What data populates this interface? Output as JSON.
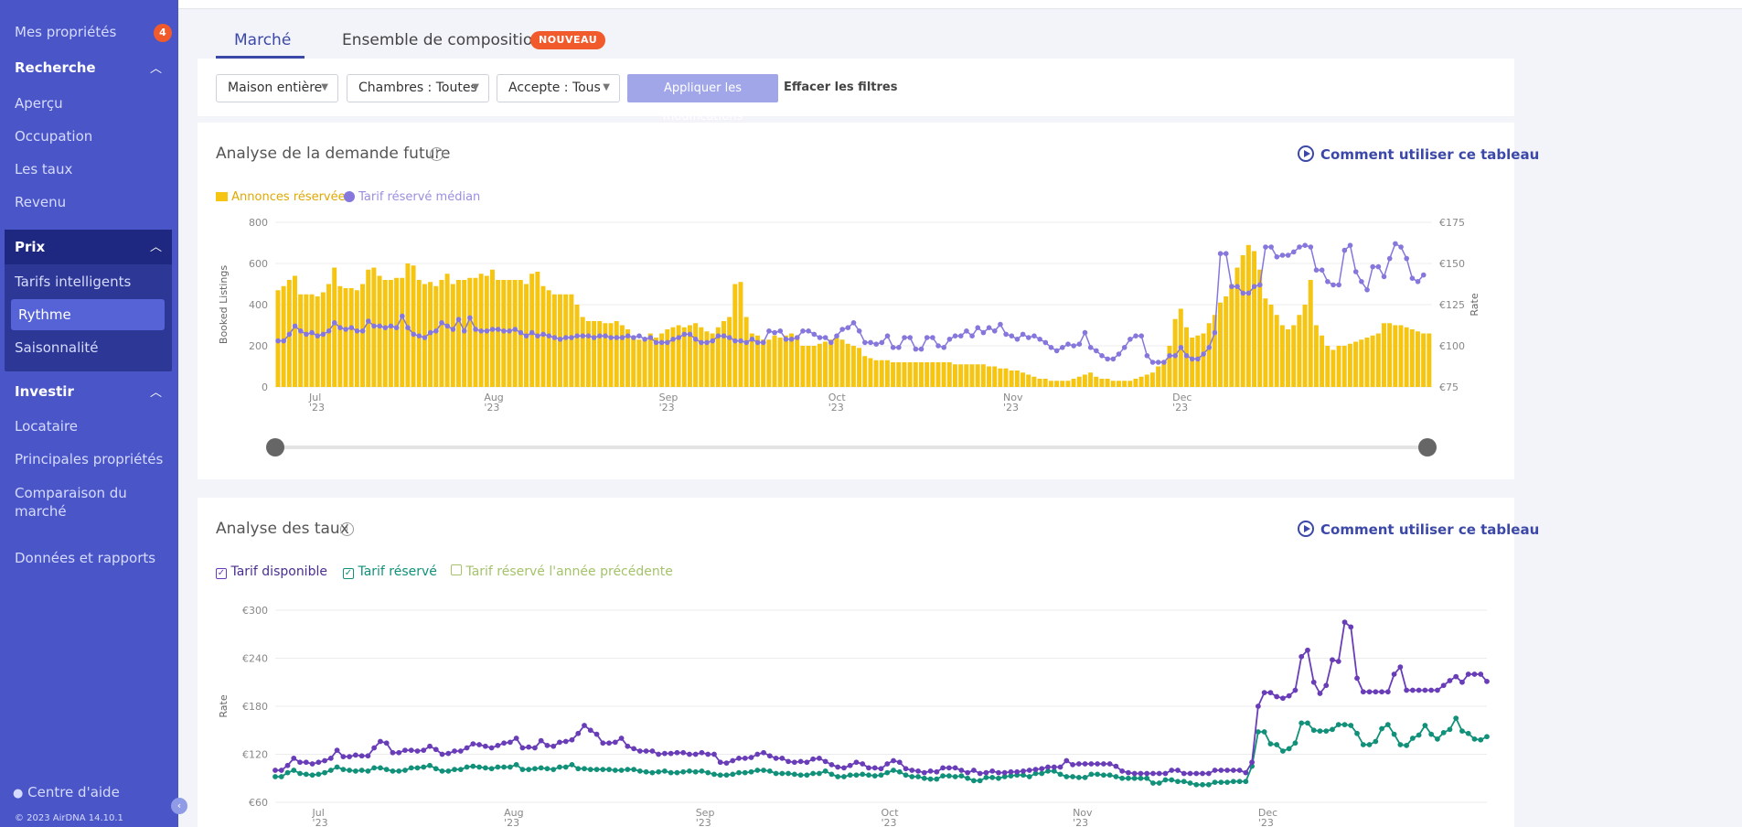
{
  "sidebar": {
    "items": [
      {
        "label": "Mes propriétés",
        "badge": "4"
      },
      {
        "label": "Recherche"
      },
      {
        "label": "Aperçu"
      },
      {
        "label": "Occupation"
      },
      {
        "label": "Les taux"
      },
      {
        "label": "Revenu"
      },
      {
        "label": "Prix"
      },
      {
        "label": "Tarifs intelligents"
      },
      {
        "label": "Rythme"
      },
      {
        "label": "Saisonnalité"
      },
      {
        "label": "Investir"
      },
      {
        "label": "Locataire"
      },
      {
        "label": "Principales propriétés"
      },
      {
        "label": "Comparaison du marché"
      },
      {
        "label": "Données et rapports"
      }
    ],
    "help": "Centre d'aide",
    "copyright": "© 2023 AirDNA 14.10.1"
  },
  "tabs": [
    {
      "label": "Marché"
    },
    {
      "label": "Ensemble de composition"
    }
  ],
  "new_badge": "NOUVEAU",
  "filters": {
    "house": "Maison entière",
    "rooms": "Chambres : Toutes",
    "accepts": "Accepte : Tous",
    "apply": "Appliquer les modifications",
    "clear": "Effacer les filtres"
  },
  "demand": {
    "title": "Analyse de la demande future",
    "howto": "Comment utiliser ce tableau",
    "legend_bars": "Annonces réservées",
    "legend_line": "Tarif réservé médian"
  },
  "rates": {
    "title": "Analyse des taux",
    "howto": "Comment utiliser ce tableau",
    "legend": [
      "Tarif disponible",
      "Tarif réservé",
      "Tarif réservé l'année précédente"
    ]
  },
  "colors": {
    "sidebar": "#4a56c8",
    "bars": "#f6c512",
    "median_line": "#8577dc",
    "available": "#6a3db8",
    "booked": "#11917a",
    "prev_year": "#a4c36a",
    "accent": "#3b48a8",
    "badge": "#f15a2b"
  },
  "chart_data": [
    {
      "type": "bar",
      "name": "demand",
      "ylabel": "Booked Listings",
      "y2label": "Rate",
      "ylim": [
        0,
        800
      ],
      "y2lim": [
        75,
        175
      ],
      "yticks": [
        "0",
        "200",
        "400",
        "600",
        "800"
      ],
      "y2ticks": [
        "€75",
        "€100",
        "€125",
        "€150",
        "€175"
      ],
      "xticks": [
        {
          "m": "Jul",
          "y": "'23",
          "i": 6
        },
        {
          "m": "Aug",
          "y": "'23",
          "i": 37
        },
        {
          "m": "Sep",
          "y": "'23",
          "i": 68
        },
        {
          "m": "Oct",
          "y": "'23",
          "i": 98
        },
        {
          "m": "Nov",
          "y": "'23",
          "i": 129
        },
        {
          "m": "Dec",
          "y": "'23",
          "i": 159
        }
      ],
      "grid": true,
      "series": [
        {
          "name": "Annonces réservées",
          "values": [
            470,
            490,
            520,
            540,
            450,
            450,
            450,
            440,
            460,
            500,
            580,
            490,
            480,
            480,
            470,
            500,
            570,
            580,
            540,
            520,
            520,
            530,
            530,
            600,
            590,
            520,
            500,
            510,
            490,
            520,
            550,
            500,
            520,
            520,
            530,
            530,
            550,
            540,
            570,
            520,
            520,
            520,
            520,
            520,
            500,
            550,
            560,
            490,
            470,
            450,
            450,
            450,
            450,
            400,
            340,
            320,
            320,
            320,
            310,
            310,
            320,
            300,
            280,
            240,
            230,
            240,
            260,
            240,
            260,
            280,
            290,
            300,
            290,
            300,
            310,
            290,
            270,
            260,
            290,
            320,
            340,
            500,
            510,
            340,
            260,
            250,
            230,
            230,
            250,
            240,
            250,
            260,
            250,
            200,
            200,
            200,
            210,
            220,
            230,
            240,
            230,
            210,
            200,
            190,
            150,
            140,
            130,
            130,
            130,
            120,
            120,
            120,
            120,
            120,
            120,
            120,
            120,
            120,
            120,
            120,
            110,
            110,
            110,
            110,
            110,
            110,
            100,
            100,
            90,
            90,
            80,
            80,
            70,
            60,
            50,
            40,
            40,
            30,
            30,
            30,
            30,
            40,
            50,
            60,
            70,
            50,
            40,
            40,
            30,
            30,
            30,
            30,
            40,
            50,
            60,
            70,
            100,
            130,
            200,
            330,
            380,
            290,
            240,
            250,
            260,
            310,
            350,
            410,
            440,
            500,
            580,
            640,
            690,
            660,
            570,
            430,
            400,
            350,
            300,
            280,
            300,
            350,
            400,
            520,
            300,
            250,
            200,
            180,
            200,
            200,
            210,
            220,
            230,
            240,
            250,
            260,
            310,
            310,
            300,
            300,
            290,
            280,
            270,
            260,
            260
          ]
        },
        {
          "name": "Tarif réservé médian",
          "values": [
            103,
            103,
            107,
            112,
            109,
            107,
            108,
            106,
            107,
            109,
            114,
            111,
            110,
            111,
            109,
            109,
            115,
            112,
            112,
            111,
            112,
            111,
            118,
            111,
            107,
            106,
            105,
            108,
            109,
            114,
            112,
            110,
            116,
            109,
            117,
            110,
            109,
            109,
            110,
            110,
            109,
            109,
            110,
            108,
            106,
            108,
            106,
            107,
            106,
            105,
            104,
            105,
            105,
            106,
            106,
            106,
            105,
            106,
            106,
            105,
            105,
            105,
            106,
            105,
            106,
            104,
            105,
            102,
            102,
            102,
            104,
            105,
            107,
            107,
            104,
            102,
            102,
            103,
            106,
            106,
            105,
            103,
            103,
            102,
            104,
            102,
            102,
            109,
            108,
            109,
            104,
            104,
            105,
            109,
            109,
            107,
            105,
            105,
            102,
            106,
            110,
            111,
            114,
            109,
            102,
            102,
            101,
            102,
            106,
            99,
            99,
            105,
            105,
            98,
            98,
            105,
            105,
            100,
            99,
            104,
            106,
            106,
            109,
            106,
            111,
            108,
            111,
            109,
            113,
            107,
            106,
            104,
            107,
            105,
            106,
            104,
            102,
            99,
            97,
            99,
            101,
            100,
            101,
            108,
            99,
            97,
            94,
            92,
            92,
            95,
            99,
            104,
            106,
            106,
            94,
            90,
            90,
            90,
            94,
            94,
            99,
            94,
            92,
            92,
            95,
            99,
            108,
            156,
            156,
            136,
            136,
            132,
            132,
            136,
            137,
            160,
            160,
            154,
            155,
            155,
            157,
            160,
            161,
            160,
            146,
            146,
            139,
            137,
            137,
            158,
            161,
            145,
            139,
            134,
            148,
            148,
            142,
            153,
            162,
            160,
            153,
            141,
            139,
            143
          ]
        }
      ]
    },
    {
      "type": "line",
      "name": "rates",
      "ylabel": "Rate",
      "ylim": [
        60,
        300
      ],
      "yticks": [
        "€60",
        "€120",
        "€180",
        "€240",
        "€300"
      ],
      "xticks": [
        {
          "m": "Jul",
          "y": "'23",
          "i": 6
        },
        {
          "m": "Aug",
          "y": "'23",
          "i": 37
        },
        {
          "m": "Sep",
          "y": "'23",
          "i": 68
        },
        {
          "m": "Oct",
          "y": "'23",
          "i": 98
        },
        {
          "m": "Nov",
          "y": "'23",
          "i": 129
        },
        {
          "m": "Dec",
          "y": "'23",
          "i": 159
        }
      ],
      "grid": true,
      "series": [
        {
          "name": "Tarif disponible",
          "values": [
            100,
            100,
            106,
            115,
            110,
            110,
            108,
            110,
            112,
            115,
            125,
            117,
            117,
            119,
            118,
            118,
            128,
            136,
            134,
            122,
            122,
            125,
            125,
            124,
            125,
            130,
            126,
            120,
            121,
            124,
            124,
            128,
            133,
            132,
            130,
            128,
            131,
            134,
            135,
            140,
            128,
            129,
            128,
            137,
            131,
            130,
            135,
            136,
            138,
            146,
            156,
            150,
            145,
            134,
            134,
            135,
            140,
            130,
            127,
            124,
            124,
            124,
            120,
            121,
            121,
            122,
            122,
            120,
            120,
            122,
            120,
            120,
            110,
            109,
            112,
            115,
            115,
            116,
            120,
            122,
            118,
            115,
            115,
            111,
            110,
            111,
            110,
            114,
            115,
            111,
            107,
            104,
            103,
            106,
            110,
            108,
            103,
            103,
            102,
            108,
            112,
            110,
            102,
            100,
            99,
            97,
            99,
            98,
            103,
            103,
            103,
            100,
            97,
            100,
            96,
            97,
            99,
            97,
            97,
            98,
            98,
            99,
            100,
            101,
            102,
            104,
            104,
            104,
            112,
            107,
            108,
            108,
            108,
            108,
            108,
            108,
            105,
            99,
            97,
            96,
            96,
            96,
            96,
            96,
            96,
            100,
            100,
            96,
            96,
            96,
            96,
            96,
            100,
            100,
            100,
            100,
            100,
            97,
            110,
            180,
            197,
            197,
            192,
            190,
            193,
            200,
            242,
            250,
            210,
            196,
            206,
            238,
            236,
            285,
            279,
            215,
            198,
            198,
            198,
            198,
            198,
            220,
            229,
            200,
            200,
            200,
            200,
            200,
            200,
            206,
            212,
            217,
            210,
            220,
            220,
            220,
            211
          ]
        },
        {
          "name": "Tarif réservé",
          "values": [
            92,
            92,
            97,
            100,
            96,
            95,
            94,
            95,
            97,
            100,
            104,
            101,
            100,
            99,
            100,
            99,
            103,
            103,
            101,
            99,
            99,
            100,
            103,
            103,
            104,
            106,
            102,
            99,
            99,
            101,
            101,
            104,
            105,
            104,
            103,
            102,
            104,
            104,
            104,
            107,
            101,
            101,
            102,
            103,
            102,
            101,
            104,
            104,
            107,
            102,
            102,
            101,
            101,
            101,
            101,
            100,
            100,
            101,
            101,
            99,
            98,
            97,
            98,
            99,
            97,
            97,
            98,
            99,
            98,
            99,
            97,
            95,
            94,
            94,
            95,
            97,
            97,
            98,
            100,
            100,
            99,
            96,
            96,
            96,
            95,
            94,
            94,
            96,
            96,
            99,
            95,
            92,
            92,
            94,
            94,
            95,
            94,
            93,
            94,
            97,
            100,
            98,
            94,
            92,
            92,
            90,
            89,
            89,
            93,
            93,
            92,
            93,
            90,
            87,
            87,
            91,
            91,
            90,
            92,
            93,
            94,
            94,
            92,
            96,
            96,
            99,
            99,
            95,
            92,
            92,
            91,
            91,
            95,
            95,
            94,
            94,
            92,
            90,
            90,
            90,
            90,
            90,
            84,
            84,
            88,
            88,
            86,
            86,
            84,
            82,
            82,
            82,
            85,
            85,
            85,
            86,
            86,
            86,
            105,
            148,
            148,
            133,
            132,
            124,
            127,
            134,
            159,
            159,
            150,
            149,
            149,
            151,
            157,
            157,
            156,
            146,
            132,
            132,
            136,
            152,
            157,
            145,
            132,
            131,
            140,
            144,
            156,
            145,
            139,
            147,
            151,
            165,
            149,
            146,
            139,
            138,
            142
          ]
        }
      ]
    }
  ]
}
